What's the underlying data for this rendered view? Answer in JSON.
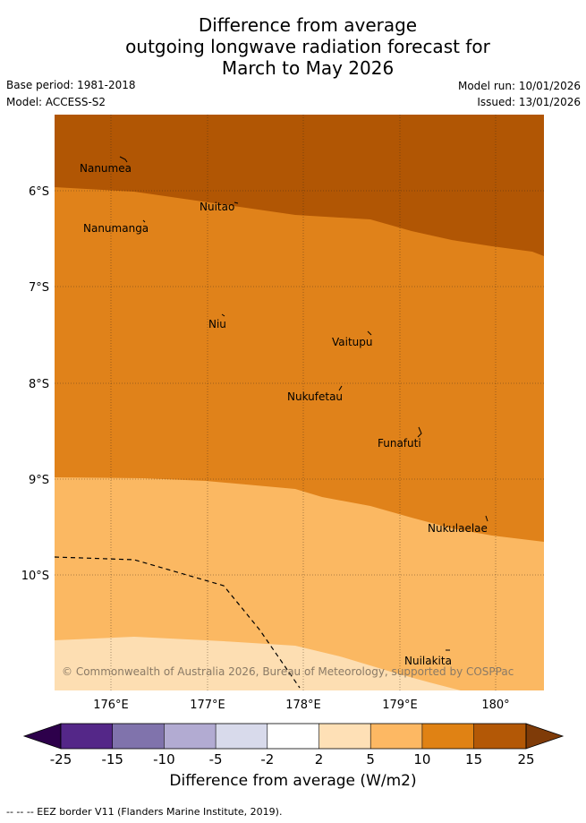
{
  "title": [
    "Difference from average",
    "outgoing longwave radiation forecast for",
    "March to May 2026"
  ],
  "base_period": "Base period: 1981-2018",
  "model": "Model: ACCESS-S2",
  "model_run": "Model run: 10/01/2026",
  "issued": "Issued: 13/01/2026",
  "map": {
    "lat_labels": [
      "6°S",
      "7°S",
      "8°S",
      "9°S",
      "10°S"
    ],
    "lon_labels": [
      "176°E",
      "177°E",
      "178°E",
      "179°E",
      "180°"
    ],
    "places": [
      "Nanumea",
      "Nuitao",
      "Nanumanga",
      "Niu",
      "Vaitupu",
      "Nukufetau",
      "Funafuti",
      "Nukulaelae",
      "Nuilakita"
    ],
    "copyright": "© Commonwealth of Australia 2026, Bureau of Meteorology, supported by COSPPac",
    "colors": {
      "band_15_25": "#b15604",
      "band_10_15": "#e0821a",
      "band_5_10": "#fbb862",
      "band_2_5": "#fddeb2"
    }
  },
  "colorbar": {
    "ticks": [
      "-25",
      "-15",
      "-10",
      "-5",
      "-2",
      "2",
      "5",
      "10",
      "15",
      "25"
    ],
    "colors": [
      "#2d004b",
      "#542788",
      "#8073ac",
      "#b2abd2",
      "#d8daeb",
      "#ffffff",
      "#fee0b6",
      "#fdb863",
      "#e08214",
      "#b35806",
      "#7f3b08"
    ],
    "label": "Difference from average (W/m2)"
  },
  "footer": "--  --  -- EEZ border V11 (Flanders Marine Institute, 2019)."
}
